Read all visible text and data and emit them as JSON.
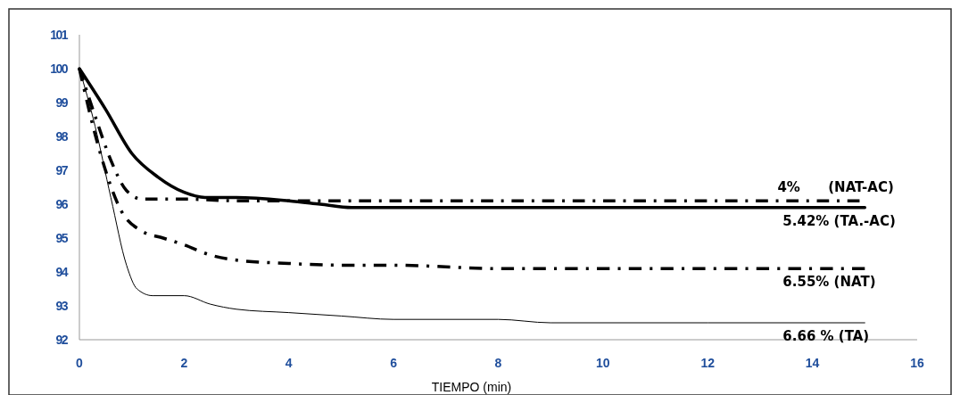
{
  "chart_data": {
    "type": "line",
    "xlabel": "TIEMPO (min)",
    "xlim": [
      0,
      16
    ],
    "xticks": [
      0,
      2,
      4,
      6,
      8,
      10,
      12,
      14,
      16
    ],
    "ylim": [
      92,
      101
    ],
    "yticks": [
      92,
      93,
      94,
      95,
      96,
      97,
      98,
      99,
      100,
      101
    ],
    "grid": false,
    "marker": "none",
    "series": [
      {
        "name": "4%      (NAT-AC)",
        "color": "#000000",
        "line_style": "dashed",
        "x": [
          0,
          0.3,
          0.6,
          0.9,
          1.2,
          2,
          3,
          4,
          6,
          10,
          14.9
        ],
        "values": [
          100,
          98.6,
          97.3,
          96.4,
          96.15,
          96.15,
          96.1,
          96.1,
          96.1,
          96.1,
          96.1
        ]
      },
      {
        "name": "5.42% (TA.-AC)",
        "color": "#000000",
        "line_style": "solid",
        "x": [
          0,
          0.5,
          1,
          1.5,
          2,
          2.4,
          3,
          4,
          4.6,
          5.2,
          8,
          15
        ],
        "values": [
          100,
          98.8,
          97.5,
          96.8,
          96.35,
          96.2,
          96.2,
          96.1,
          96,
          95.9,
          95.9,
          95.9
        ]
      },
      {
        "name": "6.55% (NAT)",
        "color": "#000000",
        "line_style": "dashed",
        "x": [
          0,
          0.4,
          0.8,
          1.2,
          1.6,
          2,
          2.5,
          3,
          4,
          5,
          6,
          8,
          10,
          15
        ],
        "values": [
          100,
          97.5,
          95.8,
          95.2,
          95,
          94.8,
          94.5,
          94.35,
          94.25,
          94.2,
          94.2,
          94.1,
          94.1,
          94.1
        ]
      },
      {
        "name": "6.66 % (TA)",
        "color": "#000000",
        "line_style": "solid",
        "x": [
          0,
          0.3,
          0.6,
          0.9,
          1.1,
          1.4,
          2,
          2.5,
          3,
          4,
          5,
          6,
          8,
          9,
          15
        ],
        "values": [
          100,
          98.3,
          96.2,
          94.2,
          93.5,
          93.3,
          93.3,
          93.05,
          92.9,
          92.8,
          92.7,
          92.6,
          92.6,
          92.5,
          92.5
        ]
      }
    ]
  }
}
